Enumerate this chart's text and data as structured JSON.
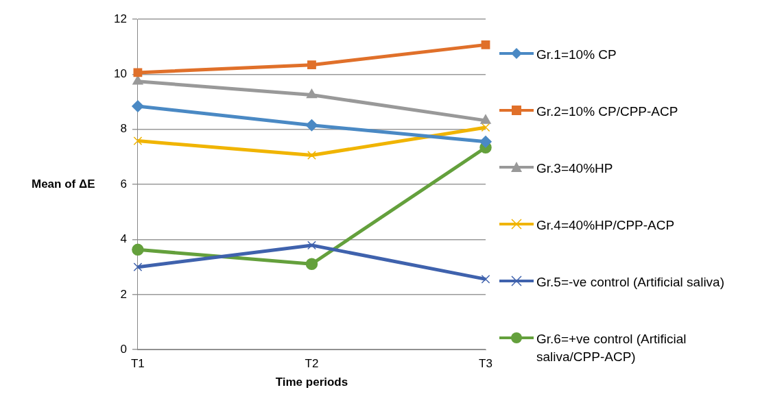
{
  "chart_data": {
    "type": "line",
    "xlabel": "Time periods",
    "ylabel": "Mean of ΔE",
    "categories": [
      "T1",
      "T2",
      "T3"
    ],
    "series": [
      {
        "name": "Gr.1=10% CP",
        "color": "#4a89c4",
        "marker": "diamond",
        "values": [
          8.84,
          8.15,
          7.55
        ]
      },
      {
        "name": "Gr.2=10% CP/CPP-ACP",
        "color": "#e0702a",
        "marker": "square",
        "values": [
          10.06,
          10.34,
          11.07
        ]
      },
      {
        "name": "Gr.3=40%HP",
        "color": "#999999",
        "marker": "triangle",
        "values": [
          9.74,
          9.25,
          8.32
        ]
      },
      {
        "name": "Gr.4=40%HP/CPP-ACP",
        "color": "#f0b400",
        "marker": "cross",
        "values": [
          7.58,
          7.06,
          8.07
        ]
      },
      {
        "name": "Gr.5=-ve control (Artificial saliva)",
        "color": "#3f62ad",
        "marker": "cross",
        "values": [
          3.0,
          3.79,
          2.56
        ]
      },
      {
        "name": "Gr.6=+ve control (Artificial saliva/CPP-ACP)",
        "color": "#64a03c",
        "marker": "circle",
        "values": [
          3.63,
          3.11,
          7.34
        ]
      }
    ],
    "ylim": [
      0,
      12
    ],
    "yticks": [
      0,
      2,
      4,
      6,
      8,
      10,
      12
    ],
    "grid": "y",
    "legend": "right"
  }
}
